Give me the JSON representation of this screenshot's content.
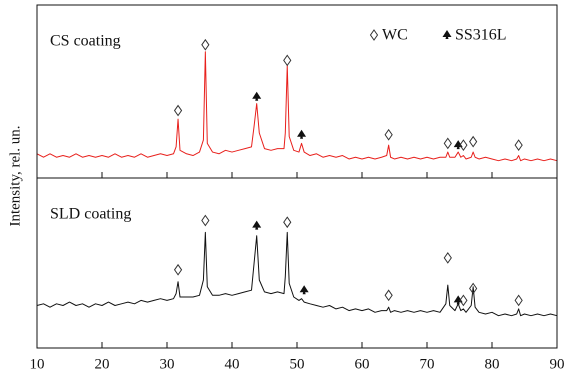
{
  "chart_data": {
    "type": "line",
    "ylabel": "Intensity, rel. un.",
    "xlim": [
      10,
      90
    ],
    "xticks": [
      10,
      20,
      30,
      40,
      50,
      60,
      70,
      80,
      90
    ],
    "ylim": [
      0,
      100
    ],
    "legend": [
      {
        "name": "WC"
      },
      {
        "name": "SS316L"
      }
    ],
    "x": [
      10,
      11,
      12,
      13,
      14,
      15,
      16,
      17,
      18,
      19,
      20,
      21,
      22,
      23,
      24,
      25,
      26,
      27,
      28,
      29,
      30,
      31,
      31.4,
      31.7,
      32.0,
      33,
      34,
      35,
      35.6,
      35.9,
      36.2,
      37,
      38,
      39,
      40,
      41,
      42,
      43,
      43.4,
      43.8,
      44.2,
      45,
      46,
      47,
      48,
      48.2,
      48.5,
      48.8,
      49.5,
      50.3,
      50.7,
      51.1,
      52,
      53,
      54,
      55,
      56,
      57,
      58,
      59,
      60,
      61,
      62,
      63,
      63.8,
      64.1,
      64.4,
      65,
      66,
      67,
      68,
      69,
      70,
      71,
      72,
      72.9,
      73.2,
      73.5,
      74.3,
      74.8,
      75.2,
      75.6,
      76,
      76.8,
      77.1,
      77.4,
      78,
      79,
      80,
      81,
      82,
      83,
      83.8,
      84.1,
      84.4,
      85,
      86,
      87,
      88,
      89,
      90
    ],
    "series": [
      {
        "name": "CS coating",
        "color": "#e8201c",
        "values": [
          14,
          12,
          14,
          12,
          13,
          12,
          14,
          12,
          13,
          12,
          13,
          12,
          14,
          12,
          13,
          12,
          14,
          12,
          13,
          14,
          13,
          14,
          18,
          34,
          16,
          14,
          13,
          15,
          22,
          73,
          20,
          15,
          14,
          16,
          15,
          16,
          17,
          18,
          30,
          43,
          26,
          17,
          16,
          17,
          17,
          26,
          65,
          24,
          16,
          15,
          20,
          15,
          13,
          14,
          12,
          13,
          12,
          13,
          11,
          12,
          11,
          12,
          11,
          12,
          13,
          19,
          12,
          11,
          12,
          11,
          12,
          11,
          12,
          11,
          12,
          12,
          15,
          12,
          12,
          15,
          12,
          13,
          11,
          12,
          15,
          12,
          11,
          12,
          11,
          10,
          11,
          10,
          11,
          13,
          10,
          11,
          10,
          11,
          10,
          11,
          10
        ],
        "peaks": [
          {
            "x": 31.7,
            "y": 39,
            "phase": 0
          },
          {
            "x": 35.9,
            "y": 77,
            "phase": 0
          },
          {
            "x": 43.8,
            "y": 47,
            "phase": 1
          },
          {
            "x": 48.5,
            "y": 68,
            "phase": 0
          },
          {
            "x": 50.7,
            "y": 25,
            "phase": 1
          },
          {
            "x": 64.1,
            "y": 25,
            "phase": 0
          },
          {
            "x": 73.2,
            "y": 20,
            "phase": 0
          },
          {
            "x": 74.8,
            "y": 19,
            "phase": 1
          },
          {
            "x": 75.6,
            "y": 19,
            "phase": 0
          },
          {
            "x": 77.1,
            "y": 21,
            "phase": 0
          },
          {
            "x": 84.1,
            "y": 19,
            "phase": 0
          }
        ]
      },
      {
        "name": "SLD coating",
        "color": "#111111",
        "values": [
          25,
          26,
          24,
          26,
          25,
          27,
          25,
          26,
          24,
          26,
          25,
          27,
          25,
          26,
          27,
          26,
          28,
          27,
          28,
          29,
          28,
          29,
          32,
          39,
          30,
          30,
          30,
          31,
          40,
          68,
          36,
          31,
          31,
          32,
          31,
          32,
          33,
          34,
          50,
          66,
          40,
          33,
          32,
          33,
          32,
          42,
          68,
          38,
          30,
          28,
          29,
          27,
          26,
          25,
          24,
          25,
          23,
          24,
          22,
          23,
          22,
          23,
          21,
          22,
          22,
          24,
          21,
          22,
          21,
          22,
          21,
          22,
          21,
          22,
          21,
          26,
          37,
          25,
          22,
          26,
          22,
          23,
          21,
          25,
          36,
          24,
          21,
          20,
          21,
          19,
          20,
          19,
          20,
          23,
          19,
          20,
          19,
          20,
          19,
          20,
          19
        ],
        "peaks": [
          {
            "x": 31.7,
            "y": 46,
            "phase": 0
          },
          {
            "x": 35.9,
            "y": 75,
            "phase": 0
          },
          {
            "x": 43.8,
            "y": 72,
            "phase": 1
          },
          {
            "x": 48.5,
            "y": 74,
            "phase": 0
          },
          {
            "x": 51.1,
            "y": 34,
            "phase": 1
          },
          {
            "x": 64.1,
            "y": 31,
            "phase": 0
          },
          {
            "x": 73.2,
            "y": 53,
            "phase": 0
          },
          {
            "x": 74.8,
            "y": 28,
            "phase": 1
          },
          {
            "x": 75.6,
            "y": 28,
            "phase": 0
          },
          {
            "x": 77.1,
            "y": 35,
            "phase": 0
          },
          {
            "x": 84.1,
            "y": 28,
            "phase": 0
          }
        ]
      }
    ]
  }
}
